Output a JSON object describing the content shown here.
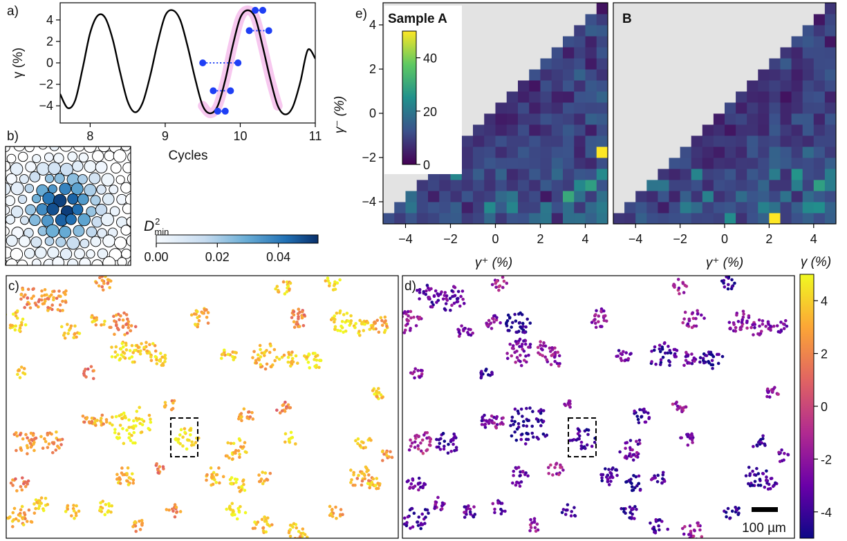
{
  "chart_data": [
    {
      "panel": "a",
      "panel_label": "a)",
      "type": "line",
      "xlabel": "Cycles",
      "ylabel": "γ (%)",
      "xlim": [
        7.6,
        11.0
      ],
      "ylim": [
        -5.6,
        5.6
      ],
      "x_ticks": [
        "8",
        "9",
        "10",
        "11"
      ],
      "x_tick_values": [
        8,
        9,
        10,
        11
      ],
      "y_ticks": [
        "4",
        "2",
        "0",
        "−2",
        "−4"
      ],
      "y_tick_values": [
        4,
        2,
        0,
        -2,
        -4
      ],
      "curve_x": [
        7.6,
        7.7,
        7.8,
        7.9,
        8.0,
        8.1,
        8.2,
        8.3,
        8.4,
        8.5,
        8.6,
        8.7,
        8.8,
        8.9,
        9.0,
        9.1,
        9.2,
        9.3,
        9.4,
        9.5,
        9.6,
        9.7,
        9.8,
        9.9,
        10.0,
        10.1,
        10.2,
        10.3,
        10.4,
        10.5,
        10.6,
        10.7,
        10.8,
        10.9,
        11.0
      ],
      "curve_y": [
        -2.9,
        -4.2,
        -3.5,
        -0.5,
        2.8,
        4.4,
        4.2,
        2.2,
        -0.9,
        -3.6,
        -4.6,
        -3.7,
        -1.2,
        1.9,
        4.4,
        4.9,
        4.0,
        1.5,
        -1.5,
        -4.0,
        -4.7,
        -4.0,
        -1.6,
        1.6,
        4.2,
        4.9,
        4.2,
        1.5,
        -1.5,
        -4.0,
        -4.8,
        -4.1,
        -1.8,
        1.2,
        0.4
      ],
      "highlight_range": [
        9.5,
        10.5
      ],
      "highlight_color": "#f7c8ef",
      "marker_points": [
        {
          "x": 9.5,
          "y": 0.0
        },
        {
          "x": 9.64,
          "y": -2.6
        },
        {
          "x": 9.7,
          "y": -4.5
        },
        {
          "x": 9.8,
          "y": -4.5
        },
        {
          "x": 9.87,
          "y": -2.6
        },
        {
          "x": 9.97,
          "y": 0.0
        },
        {
          "x": 10.12,
          "y": 3.0
        },
        {
          "x": 10.2,
          "y": 4.9
        },
        {
          "x": 10.3,
          "y": 4.9
        },
        {
          "x": 10.38,
          "y": 3.0
        }
      ],
      "dotted_pairs": [
        [
          9.5,
          9.97,
          0.0
        ],
        [
          9.64,
          9.87,
          -2.6
        ],
        [
          9.7,
          9.8,
          -4.5
        ],
        [
          10.12,
          10.38,
          3.0
        ],
        [
          10.2,
          10.3,
          4.9
        ]
      ],
      "colors": {
        "line": "#000000",
        "markers": "#1f3ff5",
        "dotted": "#1f3ff5"
      }
    },
    {
      "panel": "b",
      "panel_label": "b)",
      "type": "colormap-diagram",
      "colorbar_label": "D",
      "colorbar_label_sup": "2",
      "colorbar_label_sub": "min",
      "colorbar_range": [
        0.0,
        0.053
      ],
      "colorbar_ticks": [
        "0.00",
        "0.02",
        "0.04"
      ],
      "colorbar_tick_values": [
        0.0,
        0.02,
        0.04
      ],
      "colormap": [
        "#f7fbff",
        "#c6dbef",
        "#6baed6",
        "#2171b5",
        "#08306b"
      ]
    },
    {
      "panel": "e",
      "panel_label": "e)",
      "type": "heatmap",
      "xlabel": "γ⁺ (%)",
      "ylabel": "γ⁻ (%)",
      "xlim": [
        -5,
        5
      ],
      "ylim": [
        -5,
        5
      ],
      "ticks": [
        "−4",
        "−2",
        "0",
        "2",
        "4"
      ],
      "tick_values": [
        -4,
        -2,
        0,
        2,
        4
      ],
      "grid_bins": 20,
      "colorbar_range": [
        0,
        50
      ],
      "colorbar_ticks": [
        "0",
        "20",
        "40"
      ],
      "colorbar_tick_values": [
        0,
        20,
        40
      ],
      "colormap": [
        "#440154",
        "#3b528b",
        "#21918c",
        "#5ec962",
        "#fde725"
      ],
      "masked_color": "#e3e3e3",
      "samples": [
        {
          "title": "Sample A",
          "hot_cells": [
            {
              "x": 4.75,
              "y": -1.75,
              "value": 50
            },
            {
              "x": 3.25,
              "y": -3.75,
              "value": 30
            },
            {
              "x": 4.25,
              "y": -3.25,
              "value": 28
            }
          ],
          "seed": 7
        },
        {
          "title": "B",
          "hot_cells": [
            {
              "x": 2.25,
              "y": -4.75,
              "value": 50
            },
            {
              "x": 0.25,
              "y": -4.75,
              "value": 24
            }
          ],
          "seed": 13
        }
      ]
    },
    {
      "panel": "c/d",
      "panel_labels": [
        "c)",
        "d)"
      ],
      "type": "scatter",
      "colorbar_label": "γ (%)",
      "colorbar_range": [
        -5,
        5
      ],
      "colorbar_ticks": [
        "4",
        "2",
        "0",
        "-2",
        "-4"
      ],
      "colorbar_tick_values": [
        4,
        2,
        0,
        -2,
        -4
      ],
      "colormap": [
        "#0d0887",
        "#6a00a8",
        "#b12a90",
        "#e16462",
        "#fca636",
        "#f0f921"
      ],
      "scale_bar_label": "100 µm",
      "panel_c_bias": 3.2,
      "panel_d_bias": -3.0
    }
  ]
}
